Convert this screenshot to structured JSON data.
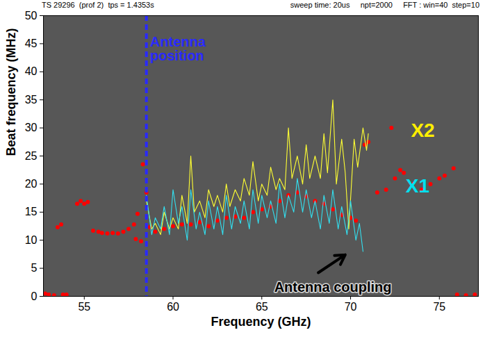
{
  "chart_data": {
    "type": "line",
    "title": "TS 29296  (prof 2)  tps = 1.4353s",
    "subtitle": "sweep time: 20us     npt=2000     FFT : win=40  step=10",
    "x_label": "Frequency (GHz)",
    "y_label": "Beat frequency (MHz)",
    "xlim": [
      52.7,
      77.2
    ],
    "xticks": [
      55,
      60,
      65,
      70,
      75
    ],
    "ylim": [
      0,
      50
    ],
    "yticks": [
      0,
      5,
      10,
      15,
      20,
      25,
      30,
      35,
      40,
      45,
      50
    ],
    "grid": false,
    "series": [
      {
        "type": "scatter",
        "color": "#ff0000",
        "marker": "circle",
        "x": [
          52.8,
          53.0,
          53.3,
          53.8,
          54.0,
          53.5,
          53.7,
          54.6,
          54.8,
          55.0,
          55.2,
          55.5,
          55.8,
          56.0,
          56.3,
          56.6,
          56.9,
          57.2,
          57.5,
          57.8,
          58.0,
          57.9,
          58.2,
          58.3,
          58.5,
          58.7,
          59.0,
          59.5,
          60.0,
          60.5,
          61.0,
          61.5,
          62.0,
          62.5,
          63.0,
          63.5,
          64.0,
          64.5,
          65.0,
          65.5,
          66.0,
          66.5,
          67.0,
          67.5,
          68.0,
          68.5,
          69.0,
          69.5,
          70.0,
          70.3,
          70.8,
          71.0,
          72.3,
          71.5,
          72.0,
          72.5,
          72.8,
          73.0,
          73.5,
          74.0,
          74.5,
          75.0,
          75.3,
          75.8,
          76.0,
          76.5,
          77.0
        ],
        "values": [
          0.5,
          0.3,
          0.2,
          0.3,
          0.3,
          12.3,
          12.8,
          16.5,
          17,
          16.5,
          16.8,
          11.7,
          11.5,
          11.3,
          11.2,
          11.3,
          11.2,
          11.5,
          12,
          12.8,
          14.7,
          10.2,
          9.8,
          23.5,
          18.5,
          12.3,
          11.5,
          12,
          12.5,
          12.8,
          12.8,
          13.2,
          12.5,
          13.5,
          14,
          14.2,
          14,
          15,
          15.5,
          16,
          17,
          18,
          18.5,
          17.8,
          17,
          16.5,
          15.5,
          14.5,
          14,
          13.5,
          27,
          27.5,
          30,
          18.5,
          19,
          21,
          22.5,
          22,
          20,
          19,
          20,
          21,
          21.5,
          22.8,
          0.3,
          0.2,
          0.3
        ]
      },
      {
        "type": "line",
        "color": "#ffff33",
        "line_style": "solid",
        "x": [
          58.5,
          58.8,
          59.0,
          59.3,
          59.5,
          59.8,
          60.0,
          60.3,
          60.5,
          60.8,
          61.0,
          61.2,
          61.5,
          61.8,
          62.0,
          62.3,
          62.5,
          62.8,
          63.0,
          63.2,
          63.5,
          63.8,
          64.0,
          64.3,
          64.5,
          64.8,
          65.0,
          65.3,
          65.5,
          65.8,
          66.0,
          66.3,
          66.5,
          66.7,
          67.0,
          67.3,
          67.5,
          67.7,
          68.0,
          68.3,
          68.5,
          68.7,
          69.0,
          69.2,
          69.5,
          69.7,
          69.9,
          70.2,
          70.4,
          70.7,
          70.9,
          71.0
        ],
        "values": [
          17,
          12,
          13,
          11,
          15,
          12,
          14,
          12,
          18,
          13,
          25,
          15,
          17,
          14,
          19,
          16,
          18,
          15,
          20,
          16,
          19,
          17,
          21,
          18,
          24,
          17,
          20,
          18,
          23,
          19,
          21,
          19,
          30,
          21,
          25,
          20,
          27,
          21,
          25,
          21,
          29,
          22,
          35,
          20,
          28,
          22,
          12,
          28,
          23,
          30,
          26,
          29
        ]
      },
      {
        "type": "line",
        "color": "#33e0f0",
        "line_style": "solid",
        "x": [
          58.5,
          58.8,
          59.0,
          59.3,
          59.5,
          59.8,
          60.0,
          60.3,
          60.5,
          60.8,
          61.0,
          61.3,
          61.5,
          61.8,
          62.0,
          62.3,
          62.5,
          62.8,
          63.0,
          63.3,
          63.5,
          63.8,
          64.0,
          64.3,
          64.5,
          64.8,
          65.0,
          65.3,
          65.5,
          65.8,
          66.0,
          66.3,
          66.5,
          66.8,
          67.0,
          67.3,
          67.5,
          67.8,
          68.0,
          68.3,
          68.5,
          68.8,
          69.0,
          69.3,
          69.5,
          69.8,
          70.0,
          70.3,
          70.5,
          70.7
        ],
        "values": [
          18,
          11,
          14,
          12,
          16,
          11,
          19,
          13,
          16,
          10,
          19,
          12,
          15,
          11,
          17,
          12,
          16,
          11,
          18,
          12,
          16,
          13,
          17,
          12,
          19,
          13,
          18,
          14,
          17,
          13,
          20,
          14,
          18,
          15,
          21,
          15,
          19,
          14,
          17,
          12,
          18,
          13,
          19,
          12,
          16,
          11,
          17,
          10,
          13,
          8
        ]
      }
    ],
    "vlines": [
      {
        "x": 58.5,
        "color": "#2a2aff",
        "line_style": "dashed"
      }
    ],
    "annotations": [
      {
        "text": "Antenna position",
        "x": 58.7,
        "y": 44,
        "color": "#2a2aff"
      },
      {
        "text": "X2",
        "x": 73.4,
        "y": 29.5,
        "color": "#ffee00"
      },
      {
        "text": "X1",
        "x": 73.1,
        "y": 19.6,
        "color": "#00e0ee"
      },
      {
        "text": "Antenna coupling",
        "x": 65.7,
        "y": 1.6,
        "color": "#000000",
        "arrow_x": 69.7,
        "arrow_y": 7.4
      }
    ]
  }
}
